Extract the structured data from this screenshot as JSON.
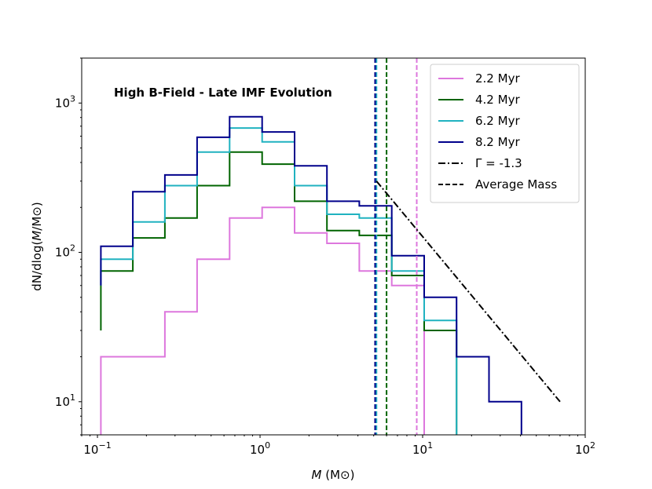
{
  "chart_data": {
    "type": "line",
    "title": "",
    "annotation": "High B-Field - Late IMF Evolution",
    "xlabel": "M (M⊙)",
    "xlabel_italic": "M",
    "xlabel_rest": " (M⊙)",
    "ylabel": "dN/dlog(M/M⊙)",
    "ylabel_parts": [
      "dN/dlog(",
      "M",
      "/M⊙)"
    ],
    "xscale": "log",
    "yscale": "log",
    "xlim": [
      0.08,
      100
    ],
    "ylim": [
      6,
      2000
    ],
    "x_ticks": [
      {
        "value": 0.1,
        "base": "10",
        "exp": "−1"
      },
      {
        "value": 1,
        "base": "10",
        "exp": "0"
      },
      {
        "value": 10,
        "base": "10",
        "exp": "1"
      },
      {
        "value": 100,
        "base": "10",
        "exp": "2"
      }
    ],
    "y_ticks": [
      {
        "value": 10,
        "base": "10",
        "exp": "1"
      },
      {
        "value": 100,
        "base": "10",
        "exp": "2"
      },
      {
        "value": 1000,
        "base": "10",
        "exp": "3"
      }
    ],
    "bin_edges": [
      0.105,
      0.165,
      0.26,
      0.41,
      0.65,
      1.03,
      1.63,
      2.58,
      4.08,
      6.46,
      10.22,
      16.17,
      25.6,
      40.5
    ],
    "series": [
      {
        "name": "2.2 Myr",
        "color": "#dd77dd",
        "start": 0.1,
        "values": [
          20,
          20,
          40,
          90,
          170,
          200,
          135,
          115,
          75,
          60,
          null,
          null,
          null
        ]
      },
      {
        "name": "4.2 Myr",
        "color": "#006400",
        "start": 30,
        "values": [
          75,
          125,
          170,
          280,
          470,
          390,
          220,
          140,
          130,
          70,
          30,
          null,
          null
        ]
      },
      {
        "name": "6.2 Myr",
        "color": "#20b2c0",
        "start": 60,
        "values": [
          90,
          160,
          280,
          470,
          680,
          550,
          280,
          180,
          170,
          75,
          35,
          null,
          null
        ]
      },
      {
        "name": "8.2 Myr",
        "color": "#00008b",
        "start": 60,
        "values": [
          110,
          255,
          330,
          590,
          810,
          640,
          380,
          220,
          205,
          95,
          50,
          20,
          10
        ]
      }
    ],
    "power_law": {
      "label": "Γ = -1.3",
      "x": [
        5.2,
        70
      ],
      "y": [
        300,
        10
      ],
      "color": "#000000"
    },
    "average_mass": [
      {
        "series": "2.2 Myr",
        "x": 9.2,
        "color": "#dd77dd"
      },
      {
        "series": "4.2 Myr",
        "x": 6.0,
        "color": "#006400"
      },
      {
        "series": "6.2 Myr",
        "x": 5.2,
        "color": "#20b2c0"
      },
      {
        "series": "8.2 Myr",
        "x": 5.1,
        "color": "#00008b"
      }
    ],
    "legend": {
      "position": "top-right",
      "entries": [
        {
          "label": "2.2 Myr",
          "color": "#dd77dd",
          "style": "solid"
        },
        {
          "label": "4.2 Myr",
          "color": "#006400",
          "style": "solid"
        },
        {
          "label": "6.2 Myr",
          "color": "#20b2c0",
          "style": "solid"
        },
        {
          "label": "8.2 Myr",
          "color": "#00008b",
          "style": "solid"
        },
        {
          "label": "Γ = -1.3",
          "color": "#000000",
          "style": "dashdot"
        },
        {
          "label": "Average Mass",
          "color": "#000000",
          "style": "dashed"
        }
      ]
    }
  }
}
